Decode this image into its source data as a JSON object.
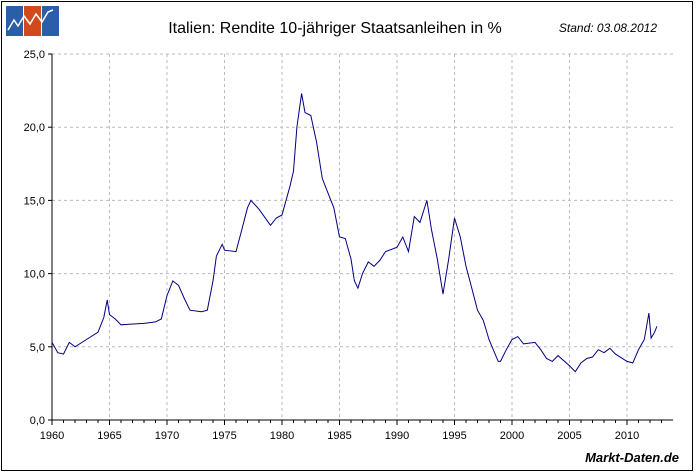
{
  "chart_data": {
    "type": "line",
    "title": "Italien: Rendite 10-jähriger Staatsanleihen in %",
    "subtitle": "Stand: 03.08.2012",
    "source": "Markt-Daten.de",
    "xlabel": "",
    "ylabel": "",
    "xlim": [
      1960,
      2014
    ],
    "ylim": [
      0,
      25
    ],
    "x_ticks": [
      "1960",
      "1965",
      "1970",
      "1975",
      "1980",
      "1985",
      "1990",
      "1995",
      "2000",
      "2005",
      "2010"
    ],
    "y_ticks": [
      "0,0",
      "5,0",
      "10,0",
      "15,0",
      "20,0",
      "25,0"
    ],
    "grid": true,
    "line_color": "#000080",
    "series": [
      {
        "x": [
          1960,
          1960.5,
          1961,
          1961.5,
          1962,
          1963,
          1964,
          1964.5,
          1964.8,
          1965,
          1965.5,
          1966,
          1968,
          1969,
          1969.5,
          1970,
          1970.5,
          1971,
          1971.5,
          1972,
          1973,
          1973.5,
          1974,
          1974.3,
          1974.8,
          1975,
          1976,
          1976.5,
          1977,
          1977.3,
          1978,
          1979,
          1979.5,
          1980,
          1980.7,
          1981,
          1981.3,
          1981.7,
          1982,
          1982.5,
          1983,
          1983.5,
          1984,
          1984.5,
          1985,
          1985.5,
          1986,
          1986.3,
          1986.6,
          1987,
          1987.5,
          1988,
          1988.5,
          1989,
          1990,
          1990.5,
          1991,
          1991.5,
          1992,
          1992.6,
          1993,
          1993.5,
          1994,
          1994.5,
          1995,
          1995.5,
          1996,
          1996.5,
          1997,
          1997.5,
          1998,
          1998.8,
          1999,
          1999.5,
          2000,
          2000.5,
          2001,
          2002,
          2002.5,
          2003,
          2003.5,
          2004,
          2005,
          2005.5,
          2006,
          2006.5,
          2007,
          2007.5,
          2008,
          2008.5,
          2009,
          2010,
          2010.5,
          2011,
          2011.5,
          2011.9,
          2012.1,
          2012.4,
          2012.6
        ],
        "y": [
          5.3,
          4.6,
          4.5,
          5.3,
          5.0,
          5.5,
          6.0,
          7.0,
          8.2,
          7.2,
          6.9,
          6.5,
          6.6,
          6.7,
          6.9,
          8.5,
          9.5,
          9.2,
          8.3,
          7.5,
          7.4,
          7.5,
          9.5,
          11.2,
          12.0,
          11.6,
          11.5,
          13.0,
          14.5,
          15.0,
          14.4,
          13.3,
          13.8,
          14.0,
          16.0,
          17.0,
          20.0,
          22.3,
          21.0,
          20.8,
          19.0,
          16.5,
          15.5,
          14.5,
          12.5,
          12.4,
          11.0,
          9.5,
          9.0,
          10.0,
          10.8,
          10.5,
          10.9,
          11.5,
          11.8,
          12.5,
          11.5,
          13.9,
          13.5,
          15.0,
          13.0,
          11.0,
          8.6,
          11.0,
          13.8,
          12.5,
          10.5,
          9.0,
          7.5,
          6.8,
          5.5,
          4.0,
          4.0,
          4.8,
          5.5,
          5.7,
          5.2,
          5.3,
          4.8,
          4.2,
          4.0,
          4.4,
          3.7,
          3.3,
          3.9,
          4.2,
          4.3,
          4.8,
          4.6,
          4.9,
          4.5,
          4.0,
          3.9,
          4.8,
          5.5,
          7.3,
          5.6,
          6.0,
          6.4
        ]
      }
    ]
  },
  "logo": {
    "colors": [
      "#2a5ea8",
      "#d04a1e",
      "#2a5ea8"
    ]
  }
}
